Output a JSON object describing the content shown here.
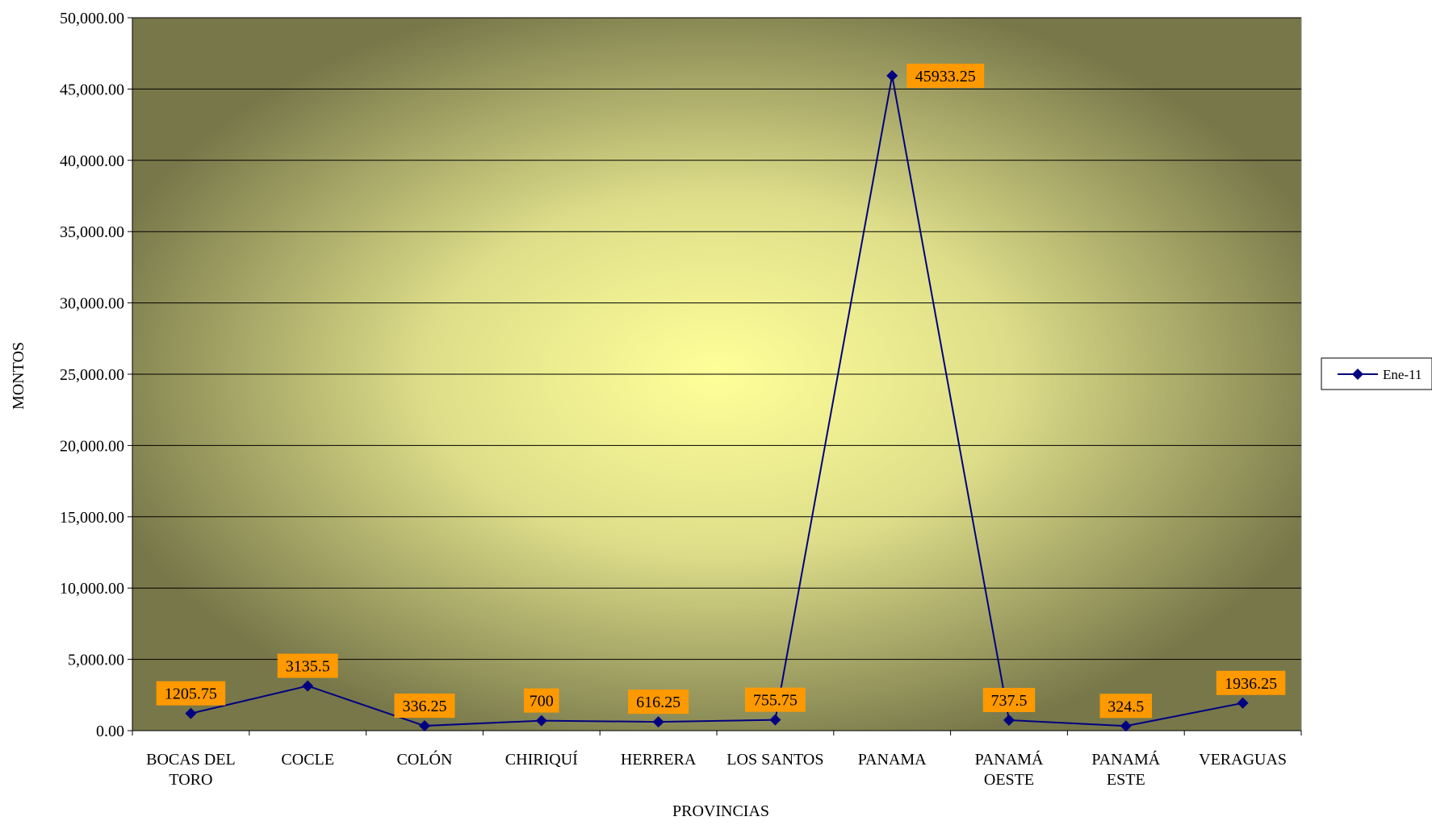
{
  "chart_data": {
    "type": "line",
    "title": "",
    "xlabel": "PROVINCIAS",
    "ylabel": "MONTOS",
    "categories": [
      [
        "BOCAS DEL",
        "TORO"
      ],
      [
        "COCLE"
      ],
      [
        "COLÓN"
      ],
      [
        "CHIRIQUÍ"
      ],
      [
        "HERRERA"
      ],
      [
        "LOS SANTOS"
      ],
      [
        "PANAMA"
      ],
      [
        "PANAMÁ",
        "OESTE"
      ],
      [
        "PANAMÁ",
        "ESTE"
      ],
      [
        "VERAGUAS"
      ]
    ],
    "series": [
      {
        "name": "Ene-11",
        "values": [
          1205.75,
          3135.5,
          336.25,
          700,
          616.25,
          755.75,
          45933.25,
          737.5,
          324.5,
          1936.25
        ],
        "data_labels": [
          "1205.75",
          "3135.5",
          "336.25",
          "700",
          "616.25",
          "755.75",
          "45933.25",
          "737.5",
          "324.5",
          "1936.25"
        ],
        "color": "#000080",
        "marker": "diamond"
      }
    ],
    "ylim": [
      0,
      50000
    ],
    "y_ticks": [
      0,
      5000,
      10000,
      15000,
      20000,
      25000,
      30000,
      35000,
      40000,
      45000,
      50000
    ],
    "y_tick_labels": [
      "0.00",
      "5,000.00",
      "10,000.00",
      "15,000.00",
      "20,000.00",
      "25,000.00",
      "30,000.00",
      "35,000.00",
      "40,000.00",
      "45,000.00",
      "50,000.00"
    ],
    "grid": true,
    "legend": "right",
    "colors": {
      "plot_background_center": "#ffff99",
      "plot_background_edge": "#77774a",
      "line": "#000080",
      "data_label_fill": "#ff9900",
      "gridline": "#000000"
    }
  }
}
